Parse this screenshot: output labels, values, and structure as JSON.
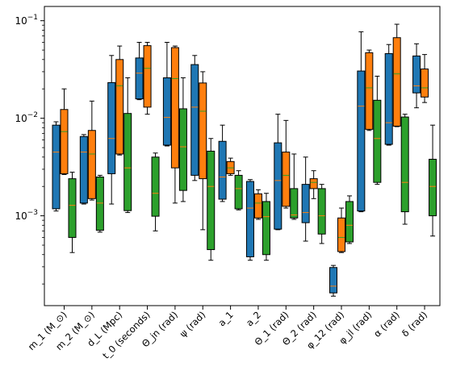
{
  "chart_data": {
    "type": "box",
    "yscale": "log",
    "ylim": [
      0.00012,
      0.14
    ],
    "title": "",
    "xlabel": "",
    "ylabel": "",
    "categories": [
      "m_1 (M_⊙)",
      "m_2 (M_⊙)",
      "d_L (Mpc)",
      "t_0 (seconds)",
      "Θ_jn (rad)",
      "ψ (rad)",
      "a_1",
      "a_2",
      "Θ_1 (rad)",
      "Θ_2 (rad)",
      "φ_12 (rad)",
      "φ_jl (rad)",
      "α (rad)",
      "δ (rad)"
    ],
    "y_ticks": [
      {
        "value": 0.001,
        "base": "10",
        "exp": "−3"
      },
      {
        "value": 0.01,
        "base": "10",
        "exp": "−2"
      },
      {
        "value": 0.1,
        "base": "10",
        "exp": "−1"
      }
    ],
    "series": [
      {
        "color": "#1f77b4",
        "boxes": [
          {
            "min": 0.00112,
            "q1": 0.00118,
            "median": 0.0045,
            "q3": 0.0085,
            "max": 0.0092
          },
          {
            "min": 0.00132,
            "q1": 0.00135,
            "median": 0.0045,
            "q3": 0.0065,
            "max": 0.0068
          },
          {
            "min": 0.00132,
            "q1": 0.0027,
            "median": 0.0062,
            "q3": 0.0232,
            "max": 0.044
          },
          {
            "min": 0.0155,
            "q1": 0.0158,
            "median": 0.029,
            "q3": 0.0415,
            "max": 0.06
          },
          {
            "min": 0.0052,
            "q1": 0.0053,
            "median": 0.0102,
            "q3": 0.026,
            "max": 0.06
          },
          {
            "min": 0.0023,
            "q1": 0.0026,
            "median": 0.013,
            "q3": 0.0355,
            "max": 0.044
          },
          {
            "min": 0.0014,
            "q1": 0.00148,
            "median": 0.0025,
            "q3": 0.0058,
            "max": 0.0085
          },
          {
            "min": 0.00035,
            "q1": 0.00038,
            "median": 0.0012,
            "q3": 0.00225,
            "max": 0.00235
          },
          {
            "min": 0.00072,
            "q1": 0.00073,
            "median": 0.0023,
            "q3": 0.0056,
            "max": 0.011
          },
          {
            "min": 0.00055,
            "q1": 0.00085,
            "median": 0.00108,
            "q3": 0.0021,
            "max": 0.004
          },
          {
            "min": 0.00015,
            "q1": 0.000162,
            "median": 0.00019,
            "q3": 0.000295,
            "max": 0.00031
          },
          {
            "min": 0.0011,
            "q1": 0.00112,
            "median": 0.0133,
            "q3": 0.0305,
            "max": 0.077
          },
          {
            "min": 0.0053,
            "q1": 0.0054,
            "median": 0.009,
            "q3": 0.046,
            "max": 0.057
          },
          {
            "min": 0.0128,
            "q1": 0.0182,
            "median": 0.0215,
            "q3": 0.0435,
            "max": 0.058
          }
        ]
      },
      {
        "color": "#ff7f0e",
        "boxes": [
          {
            "min": 0.00265,
            "q1": 0.0027,
            "median": 0.0073,
            "q3": 0.0123,
            "max": 0.02
          },
          {
            "min": 0.00145,
            "q1": 0.0015,
            "median": 0.0043,
            "q3": 0.0075,
            "max": 0.015
          },
          {
            "min": 0.0042,
            "q1": 0.0043,
            "median": 0.0215,
            "q3": 0.04,
            "max": 0.055
          },
          {
            "min": 0.011,
            "q1": 0.013,
            "median": 0.0325,
            "q3": 0.0555,
            "max": 0.06
          },
          {
            "min": 0.00135,
            "q1": 0.0031,
            "median": 0.0255,
            "q3": 0.053,
            "max": 0.055
          },
          {
            "min": 0.00072,
            "q1": 0.0024,
            "median": 0.0118,
            "q3": 0.023,
            "max": 0.03
          },
          {
            "min": 0.0026,
            "q1": 0.0027,
            "median": 0.0031,
            "q3": 0.0036,
            "max": 0.0039
          },
          {
            "min": 0.00092,
            "q1": 0.00095,
            "median": 0.00135,
            "q3": 0.00168,
            "max": 0.00185
          },
          {
            "min": 0.0012,
            "q1": 0.00125,
            "median": 0.0026,
            "q3": 0.0045,
            "max": 0.0095
          },
          {
            "min": 0.0015,
            "q1": 0.0019,
            "median": 0.0022,
            "q3": 0.0024,
            "max": 0.0029
          },
          {
            "min": 0.00042,
            "q1": 0.00043,
            "median": 0.0006,
            "q3": 0.00095,
            "max": 0.0012
          },
          {
            "min": 0.0075,
            "q1": 0.0077,
            "median": 0.0205,
            "q3": 0.047,
            "max": 0.05
          },
          {
            "min": 0.0082,
            "q1": 0.0083,
            "median": 0.0285,
            "q3": 0.067,
            "max": 0.092
          },
          {
            "min": 0.0145,
            "q1": 0.0165,
            "median": 0.0205,
            "q3": 0.032,
            "max": 0.045
          }
        ]
      },
      {
        "color": "#2ca02c",
        "boxes": [
          {
            "min": 0.00042,
            "q1": 0.0006,
            "median": 0.00128,
            "q3": 0.0024,
            "max": 0.0028
          },
          {
            "min": 0.00068,
            "q1": 0.00071,
            "median": 0.00135,
            "q3": 0.0025,
            "max": 0.0026
          },
          {
            "min": 0.00108,
            "q1": 0.00113,
            "median": 0.0031,
            "q3": 0.0112,
            "max": 0.026
          },
          {
            "min": 0.0007,
            "q1": 0.00099,
            "median": 0.0017,
            "q3": 0.004,
            "max": 0.0044
          },
          {
            "min": 0.0014,
            "q1": 0.00182,
            "median": 0.0051,
            "q3": 0.0125,
            "max": 0.026
          },
          {
            "min": 0.00035,
            "q1": 0.00045,
            "median": 0.002,
            "q3": 0.0046,
            "max": 0.0062
          },
          {
            "min": 0.00115,
            "q1": 0.00118,
            "median": 0.0019,
            "q3": 0.0026,
            "max": 0.0029
          },
          {
            "min": 0.00035,
            "q1": 0.0004,
            "median": 0.00098,
            "q3": 0.0014,
            "max": 0.0017
          },
          {
            "min": 0.00092,
            "q1": 0.00095,
            "median": 0.00102,
            "q3": 0.0019,
            "max": 0.0043
          },
          {
            "min": 0.00052,
            "q1": 0.00065,
            "median": 0.001,
            "q3": 0.0019,
            "max": 0.0021
          },
          {
            "min": 0.00052,
            "q1": 0.00054,
            "median": 0.0008,
            "q3": 0.0014,
            "max": 0.0016
          },
          {
            "min": 0.0021,
            "q1": 0.0022,
            "median": 0.0062,
            "q3": 0.0153,
            "max": 0.027
          },
          {
            "min": 0.00082,
            "q1": 0.0011,
            "median": 0.0022,
            "q3": 0.0103,
            "max": 0.011
          },
          {
            "min": 0.00062,
            "q1": 0.001,
            "median": 0.002,
            "q3": 0.0038,
            "max": 0.0085
          }
        ]
      }
    ]
  }
}
